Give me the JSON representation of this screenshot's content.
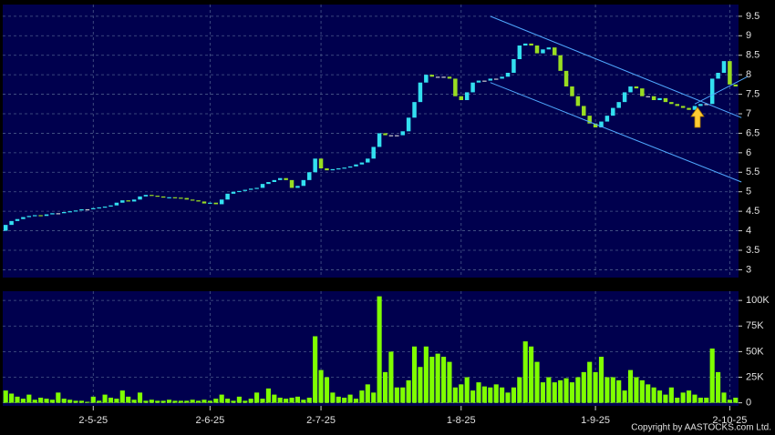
{
  "chart_data": [
    {
      "type": "candlestick",
      "open": [
        4.0,
        4.15,
        4.25,
        4.3,
        4.35,
        4.38,
        4.4,
        4.38,
        4.42,
        4.45,
        4.45,
        4.48,
        4.5,
        4.52,
        4.55,
        4.55,
        4.58,
        4.6,
        4.62,
        4.65,
        4.72,
        4.78,
        4.75,
        4.8,
        4.88,
        4.92,
        4.9,
        4.88,
        4.85,
        4.86,
        4.85,
        4.84,
        4.8,
        4.78,
        4.75,
        4.7,
        4.72,
        4.68,
        4.8,
        4.95,
        5.0,
        5.02,
        5.05,
        5.08,
        5.1,
        5.2,
        5.25,
        5.3,
        5.35,
        5.3,
        5.1,
        5.15,
        5.3,
        5.5,
        5.85,
        5.6,
        5.55,
        5.58,
        5.6,
        5.62,
        5.65,
        5.7,
        5.75,
        5.85,
        6.15,
        6.5,
        6.45,
        6.45,
        6.45,
        6.55,
        6.9,
        7.3,
        7.8,
        8.0,
        7.95,
        7.95,
        7.95,
        7.9,
        7.45,
        7.35,
        7.55,
        7.8,
        7.85,
        7.85,
        7.9,
        7.9,
        7.95,
        8.05,
        8.4,
        8.75,
        8.8,
        8.75,
        8.55,
        8.65,
        8.7,
        8.5,
        8.1,
        7.7,
        7.45,
        7.2,
        6.95,
        6.75,
        6.65,
        6.8,
        6.95,
        7.15,
        7.3,
        7.55,
        7.7,
        7.65,
        7.45,
        7.45,
        7.35,
        7.4,
        7.3,
        7.25,
        7.2,
        7.15,
        7.1,
        7.2,
        7.25,
        7.25,
        7.9,
        8.05,
        8.35,
        7.75
      ],
      "close": [
        4.15,
        4.25,
        4.3,
        4.35,
        4.38,
        4.4,
        4.38,
        4.42,
        4.45,
        4.45,
        4.48,
        4.5,
        4.52,
        4.55,
        4.55,
        4.58,
        4.6,
        4.62,
        4.65,
        4.72,
        4.78,
        4.75,
        4.8,
        4.88,
        4.92,
        4.9,
        4.88,
        4.85,
        4.86,
        4.85,
        4.84,
        4.8,
        4.78,
        4.75,
        4.7,
        4.72,
        4.68,
        4.8,
        4.95,
        5.0,
        5.02,
        5.05,
        5.08,
        5.1,
        5.2,
        5.25,
        5.3,
        5.35,
        5.3,
        5.1,
        5.15,
        5.3,
        5.5,
        5.85,
        5.6,
        5.55,
        5.58,
        5.6,
        5.62,
        5.65,
        5.7,
        5.75,
        5.85,
        6.15,
        6.5,
        6.45,
        6.45,
        6.45,
        6.55,
        6.9,
        7.3,
        7.8,
        8.0,
        7.95,
        7.95,
        7.95,
        7.9,
        7.45,
        7.35,
        7.55,
        7.8,
        7.85,
        7.85,
        7.9,
        7.9,
        7.95,
        8.05,
        8.4,
        8.75,
        8.8,
        8.75,
        8.55,
        8.65,
        8.7,
        8.5,
        8.1,
        7.7,
        7.45,
        7.2,
        6.95,
        6.75,
        6.65,
        6.8,
        6.95,
        7.15,
        7.3,
        7.55,
        7.7,
        7.65,
        7.45,
        7.45,
        7.35,
        7.4,
        7.3,
        7.25,
        7.2,
        7.15,
        7.1,
        7.2,
        7.25,
        7.25,
        7.9,
        8.05,
        8.35,
        7.75,
        7.7
      ],
      "up_color": "#33e0f0",
      "down_color": "#99dd22",
      "ylim": [
        2.8,
        9.8
      ],
      "yticks": [
        3,
        3.5,
        4,
        4.5,
        5,
        5.5,
        6,
        6.5,
        7,
        7.5,
        8,
        8.5,
        9,
        9.5
      ],
      "grid": true,
      "trend_lines": [
        {
          "x": [
            83,
            126
          ],
          "y": [
            9.5,
            6.9
          ]
        },
        {
          "x": [
            83,
            126
          ],
          "y": [
            7.8,
            5.25
          ]
        },
        {
          "x": [
            118,
            127
          ],
          "y": [
            7.25,
            7.95
          ]
        }
      ],
      "trend_color": "#4fa8ff"
    },
    {
      "type": "bar",
      "color": "#7fff00",
      "categories": [
        null,
        null,
        null,
        null,
        null,
        null,
        null,
        null,
        null,
        null,
        null,
        null,
        null,
        null,
        null,
        "2-5-25",
        null,
        null,
        null,
        null,
        null,
        null,
        null,
        null,
        null,
        null,
        null,
        null,
        null,
        null,
        null,
        null,
        null,
        null,
        null,
        "2-6-25",
        null,
        null,
        null,
        null,
        null,
        null,
        null,
        null,
        null,
        null,
        null,
        null,
        null,
        null,
        null,
        null,
        null,
        null,
        "2-7-25",
        null,
        null,
        null,
        null,
        null,
        null,
        null,
        null,
        null,
        null,
        null,
        null,
        null,
        null,
        null,
        null,
        null,
        null,
        null,
        null,
        null,
        null,
        null,
        "1-8-25",
        null,
        null,
        null,
        null,
        null,
        null,
        null,
        null,
        null,
        null,
        null,
        null,
        null,
        null,
        null,
        null,
        null,
        null,
        null,
        null,
        null,
        null,
        "1-9-25",
        null,
        null,
        null,
        null,
        null,
        null,
        null,
        null,
        null,
        null,
        null,
        null,
        null,
        null,
        null,
        null,
        null,
        null,
        null,
        null,
        null,
        null,
        "2-10-25",
        null
      ],
      "values": [
        12000,
        9000,
        6000,
        4000,
        8000,
        3000,
        5000,
        4000,
        3000,
        10000,
        4000,
        3000,
        2000,
        2000,
        1000,
        6000,
        2000,
        8000,
        5000,
        4000,
        12000,
        6000,
        3000,
        10000,
        2000,
        3000,
        2000,
        2000,
        3000,
        2000,
        2000,
        2000,
        3000,
        2000,
        3000,
        2000,
        4000,
        8000,
        4000,
        2000,
        6000,
        2000,
        4000,
        10000,
        4000,
        14000,
        8000,
        5000,
        4000,
        5000,
        6000,
        3000,
        5000,
        65000,
        32000,
        25000,
        10000,
        6000,
        5000,
        8000,
        4000,
        12000,
        18000,
        10000,
        104000,
        30000,
        50000,
        15000,
        15000,
        22000,
        55000,
        35000,
        55000,
        45000,
        48000,
        45000,
        40000,
        15000,
        18000,
        25000,
        12000,
        20000,
        16000,
        15000,
        18000,
        15000,
        10000,
        15000,
        25000,
        60000,
        55000,
        40000,
        20000,
        25000,
        20000,
        22000,
        24000,
        20000,
        25000,
        30000,
        40000,
        30000,
        45000,
        25000,
        25000,
        22000,
        12000,
        32000,
        25000,
        22000,
        18000,
        15000,
        12000,
        8000,
        15000,
        5000,
        10000,
        12000,
        8000,
        5000,
        5000,
        53000,
        30000,
        10000,
        3000,
        5000
      ],
      "ylim": [
        -3000,
        109000
      ],
      "yticks": [
        0,
        {
          "value": 25000,
          "label": "25K"
        },
        {
          "value": 50000,
          "label": "50K"
        },
        {
          "value": 75000,
          "label": "75K"
        },
        {
          "value": 100000,
          "label": "100K"
        }
      ],
      "grid": true
    }
  ],
  "copyright": "Copyright by AASTOCKS.com Ltd."
}
